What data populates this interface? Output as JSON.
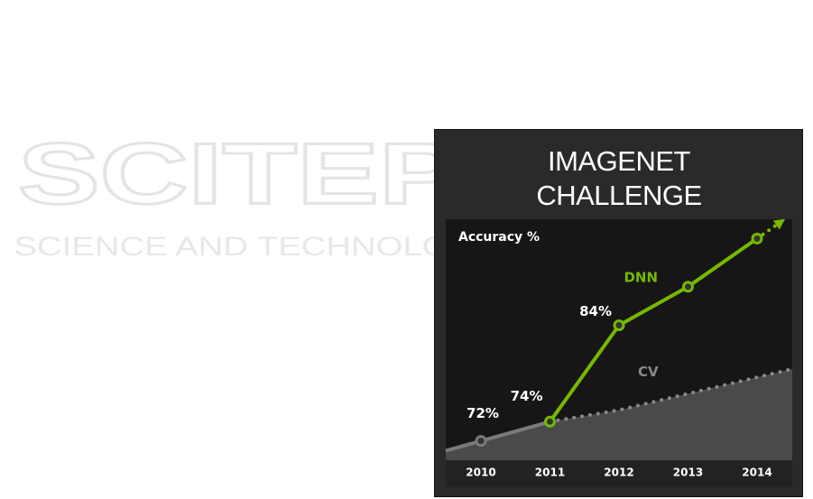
{
  "watermark": {
    "name": "SCITEPRESS",
    "tagline": "SCIENCE AND TECHNOLOGY PUBLICATIONS"
  },
  "chart_data": {
    "type": "line",
    "title": "IMAGENET CHALLENGE",
    "y_label": "Accuracy %",
    "categories": [
      "2010",
      "2011",
      "2012",
      "2013",
      "2014"
    ],
    "ylim": [
      70,
      95
    ],
    "series": [
      {
        "name": "DNN",
        "color": "#76b900",
        "values": [
          null,
          74,
          84,
          88,
          93
        ],
        "value_labels": [
          null,
          "74%",
          "84%",
          null,
          null
        ]
      },
      {
        "name": "CV",
        "color": "#7a7a7a",
        "values": [
          72,
          74,
          75.2,
          76.9,
          78.6
        ],
        "value_labels": [
          "72%",
          null,
          null,
          null,
          null
        ]
      }
    ]
  }
}
